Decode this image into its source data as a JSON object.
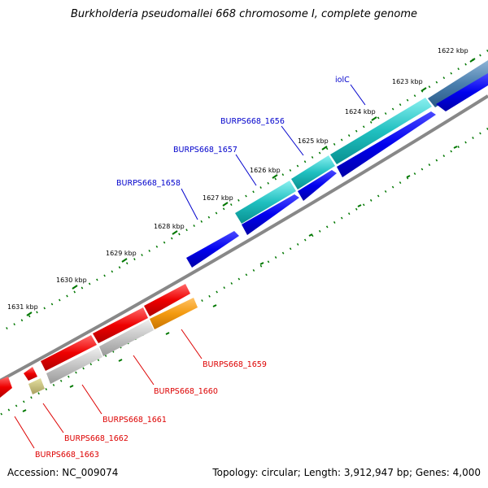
{
  "title": "Burkholderia pseudomallei 668 chromosome I, complete genome",
  "footer": {
    "accession": "Accession: NC_009074",
    "summary": "Topology: circular; Length: 3,912,947 bp; Genes: 4,000"
  },
  "colors": {
    "forward_label": "#0000cc",
    "reverse_label": "#dd0000",
    "backbone": "#888888",
    "tick": "#007700"
  },
  "scale_labels": [
    "1622 kbp",
    "1623 kbp",
    "1624 kbp",
    "1625 kbp",
    "1626 kbp",
    "1627 kbp",
    "1628 kbp",
    "1629 kbp",
    "1630 kbp",
    "1631 kbp"
  ],
  "gene_labels": {
    "forward": [
      "iolC",
      "BURPS668_1656",
      "BURPS668_1657",
      "BURPS668_1658"
    ],
    "reverse": [
      "BURPS668_1659",
      "BURPS668_1660",
      "BURPS668_1661",
      "BURPS668_1662",
      "BURPS668_1663"
    ]
  }
}
